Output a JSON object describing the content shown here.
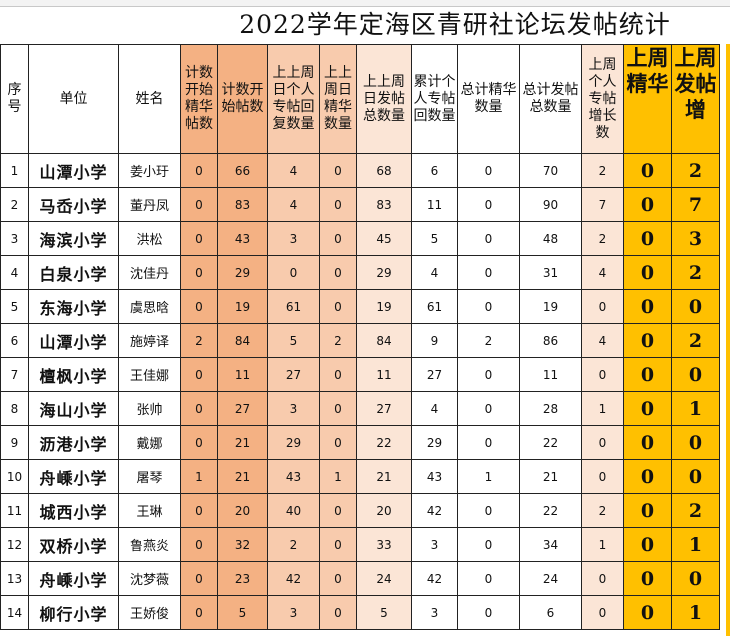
{
  "title": "2022学年定海区青研社论坛发帖统计",
  "headers": [
    "序号",
    "单位",
    "姓名",
    "计数开始精华帖数",
    "计数开始帖数",
    "上上周日个人专帖回复数量",
    "上上周日精华数量",
    "上上周日发帖总数量",
    "累计个人专帖回数量",
    "总计精华数量",
    "总计发帖总数量",
    "上周个人专帖增长数",
    "上周精华",
    "上周发帖增"
  ],
  "rows": [
    [
      "1",
      "山潭小学",
      "姜小玗",
      "0",
      "66",
      "4",
      "0",
      "68",
      "6",
      "0",
      "70",
      "2",
      "0",
      "2"
    ],
    [
      "2",
      "马岙小学",
      "董丹凤",
      "0",
      "83",
      "4",
      "0",
      "83",
      "11",
      "0",
      "90",
      "7",
      "0",
      "7"
    ],
    [
      "3",
      "海滨小学",
      "洪松",
      "0",
      "43",
      "3",
      "0",
      "45",
      "5",
      "0",
      "48",
      "2",
      "0",
      "3"
    ],
    [
      "4",
      "白泉小学",
      "沈佳丹",
      "0",
      "29",
      "0",
      "0",
      "29",
      "4",
      "0",
      "31",
      "4",
      "0",
      "2"
    ],
    [
      "5",
      "东海小学",
      "虞思晗",
      "0",
      "19",
      "61",
      "0",
      "19",
      "61",
      "0",
      "19",
      "0",
      "0",
      "0"
    ],
    [
      "6",
      "山潭小学",
      "施婷译",
      "2",
      "84",
      "5",
      "2",
      "84",
      "9",
      "2",
      "86",
      "4",
      "0",
      "2"
    ],
    [
      "7",
      "檀枫小学",
      "王佳娜",
      "0",
      "11",
      "27",
      "0",
      "11",
      "27",
      "0",
      "11",
      "0",
      "0",
      "0"
    ],
    [
      "8",
      "海山小学",
      "张帅",
      "0",
      "27",
      "3",
      "0",
      "27",
      "4",
      "0",
      "28",
      "1",
      "0",
      "1"
    ],
    [
      "9",
      "沥港小学",
      "戴娜",
      "0",
      "21",
      "29",
      "0",
      "22",
      "29",
      "0",
      "22",
      "0",
      "0",
      "0"
    ],
    [
      "10",
      "舟嵊小学",
      "屠琴",
      "1",
      "21",
      "43",
      "1",
      "21",
      "43",
      "1",
      "21",
      "0",
      "0",
      "0"
    ],
    [
      "11",
      "城西小学",
      "王琳",
      "0",
      "20",
      "40",
      "0",
      "20",
      "42",
      "0",
      "22",
      "2",
      "0",
      "2"
    ],
    [
      "12",
      "双桥小学",
      "鲁燕炎",
      "0",
      "32",
      "2",
      "0",
      "33",
      "3",
      "0",
      "34",
      "1",
      "0",
      "1"
    ],
    [
      "13",
      "舟嵊小学",
      "沈梦薇",
      "0",
      "23",
      "42",
      "0",
      "24",
      "42",
      "0",
      "24",
      "0",
      "0",
      "0"
    ],
    [
      "14",
      "柳行小学",
      "王娇俊",
      "0",
      "5",
      "3",
      "0",
      "5",
      "3",
      "0",
      "6",
      "0",
      "0",
      "1"
    ]
  ],
  "colors": {
    "salmon": "#f4b183",
    "salmon_light": "#f8cbad",
    "peach": "#fbe5d6",
    "orange": "#ffc000"
  }
}
